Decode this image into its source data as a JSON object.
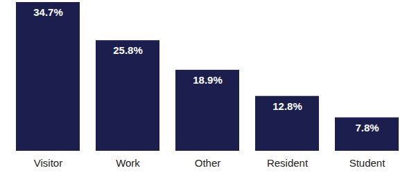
{
  "chart_data": {
    "type": "bar",
    "categories": [
      "Visitor",
      "Work",
      "Other",
      "Resident",
      "Student"
    ],
    "values": [
      34.7,
      25.8,
      18.9,
      12.8,
      7.8
    ],
    "value_labels": [
      "34.7%",
      "25.8%",
      "18.9%",
      "12.8%",
      "7.8%"
    ],
    "color": "#1c1f4e",
    "ylim": [
      0,
      34.7
    ],
    "yticks": [],
    "grid": false,
    "data_labels": true,
    "tick_labels": "x"
  }
}
